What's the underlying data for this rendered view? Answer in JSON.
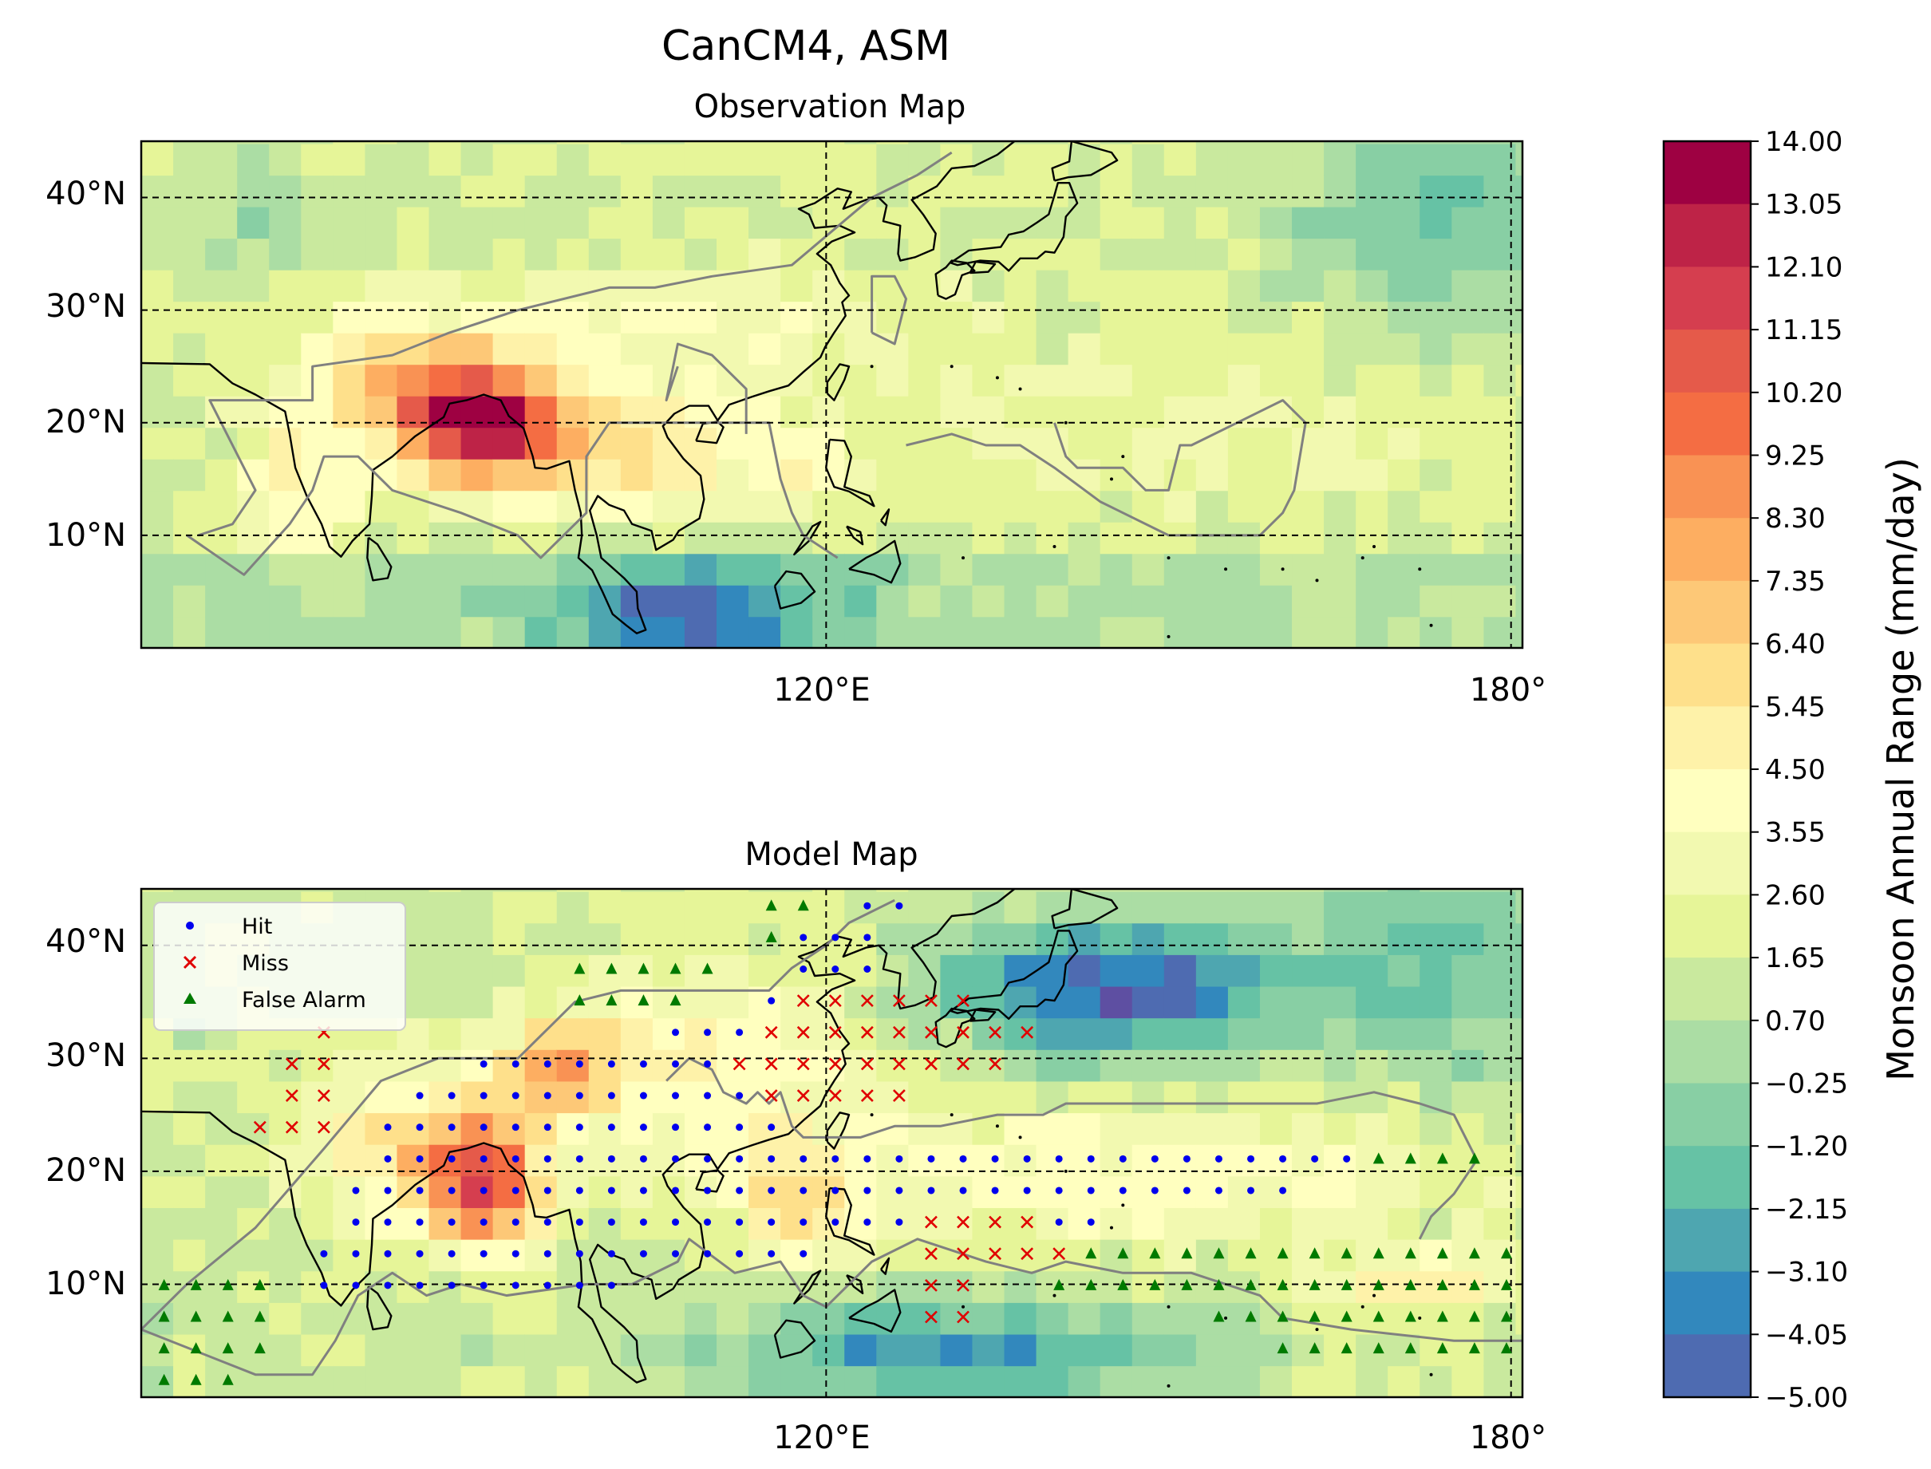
{
  "figure": {
    "title": "CanCM4, ASM"
  },
  "panels": [
    {
      "id": "obs",
      "title": "Observation Map",
      "lat_ticks": [
        "40°N",
        "30°N",
        "20°N",
        "10°N"
      ],
      "lon_ticks": [
        "120°E",
        "180°"
      ]
    },
    {
      "id": "model",
      "title": "Model Map",
      "lat_ticks": [
        "40°N",
        "30°N",
        "20°N",
        "10°N"
      ],
      "lon_ticks": [
        "120°E",
        "180°"
      ]
    }
  ],
  "legend": {
    "items": [
      {
        "label": "Hit",
        "marker": "circle",
        "color": "#0000ee"
      },
      {
        "label": "Miss",
        "marker": "x",
        "color": "#e00000"
      },
      {
        "label": "False Alarm",
        "marker": "triangle",
        "color": "#007a00"
      }
    ]
  },
  "colorbar": {
    "label": "Monsoon Annual Range (mm/day)",
    "ticks": [
      "14.00",
      "13.05",
      "12.10",
      "11.15",
      "10.20",
      "9.25",
      "8.30",
      "7.35",
      "6.40",
      "5.45",
      "4.50",
      "3.55",
      "2.60",
      "1.65",
      "0.70",
      "−0.25",
      "−1.20",
      "−2.15",
      "−3.10",
      "−4.05",
      "−5.00"
    ],
    "colors": [
      "#9e0142",
      "#be2347",
      "#d53e4f",
      "#e55a4a",
      "#f46d43",
      "#f99254",
      "#fdae61",
      "#fdc877",
      "#fee08b",
      "#fef2a9",
      "#ffffbf",
      "#f2f9b0",
      "#e6f598",
      "#c9e99e",
      "#abdda4",
      "#88cfa4",
      "#66c2a5",
      "#4ea6b0",
      "#3288bd",
      "#4e6bb1",
      "#5e4fa2"
    ]
  },
  "chart_data": [
    {
      "type": "heatmap",
      "title": "Observation Map",
      "lat_range": [
        0,
        45
      ],
      "lon_range": [
        60,
        181
      ],
      "value_range": [
        -5.0,
        14.0
      ],
      "gridlines": {
        "lat": [
          10,
          20,
          30,
          40
        ],
        "lon": [
          120,
          180
        ]
      },
      "grid_resolution_deg": 2.8,
      "high_values_region": "South Asia / Bay of Bengal / Indochina, peak about 12-13 mm/day near 20-25°N, 85-95°E",
      "low_values_region": "equatorial western Pacific and mid-latitude North Pacific, about -2 to -4 mm/day"
    },
    {
      "type": "heatmap",
      "title": "Model Map",
      "lat_range": [
        0,
        45
      ],
      "lon_range": [
        60,
        181
      ],
      "value_range": [
        -5.0,
        14.0
      ],
      "gridlines": {
        "lat": [
          10,
          20,
          30,
          40
        ],
        "lon": [
          120,
          180
        ]
      },
      "series": [
        {
          "name": "Hit",
          "marker": "circle"
        },
        {
          "name": "Miss",
          "marker": "x"
        },
        {
          "name": "False Alarm",
          "marker": "triangle"
        }
      ]
    }
  ]
}
